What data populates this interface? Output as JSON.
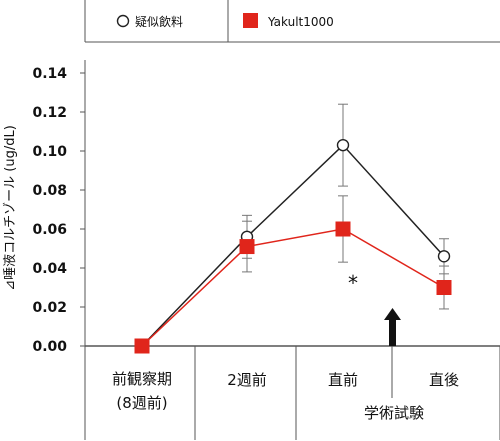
{
  "chart_data": {
    "type": "line",
    "ylabel": "⊿唾液コルチゾール (ug/dL)",
    "ylim": [
      0,
      0.14
    ],
    "yticks": [
      "0.00",
      "0.02",
      "0.04",
      "0.06",
      "0.08",
      "0.10",
      "0.12",
      "0.14"
    ],
    "categories": [
      "前観察期\n(8週前)",
      "2週前",
      "直前",
      "直後"
    ],
    "category_lines": [
      [
        "前観察期",
        "(8週前)"
      ],
      [
        "2週前"
      ],
      [
        "直前"
      ],
      [
        "直後"
      ]
    ],
    "group_label": "学術試験",
    "annotation": "*",
    "legend_placement": "top",
    "series": [
      {
        "name": "疑似飲料",
        "marker": "open-circle",
        "color": "#222222",
        "values": [
          0.0,
          0.056,
          0.103,
          0.046
        ],
        "error": [
          0.0,
          0.011,
          0.021,
          0.009
        ]
      },
      {
        "name": "Yakult1000",
        "marker": "filled-square",
        "color": "#e0251b",
        "values": [
          0.0,
          0.051,
          0.06,
          0.03
        ],
        "error": [
          0.0,
          0.013,
          0.017,
          0.011
        ]
      }
    ]
  }
}
